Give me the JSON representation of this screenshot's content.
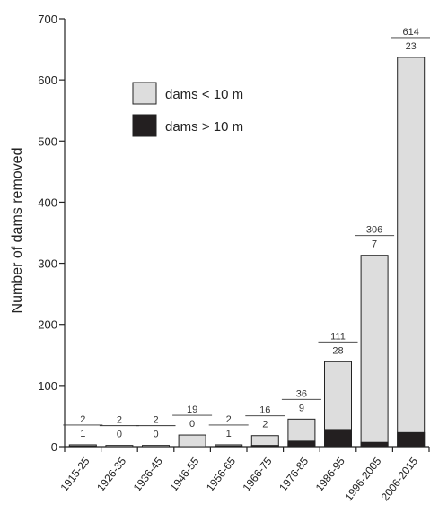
{
  "chart_data": {
    "type": "bar",
    "stacked": true,
    "title": "",
    "xlabel": "",
    "ylabel": "Number of dams removed",
    "ylim": [
      0,
      700
    ],
    "yticks": [
      0,
      100,
      200,
      300,
      400,
      500,
      600,
      700
    ],
    "categories": [
      "1915-25",
      "1926-35",
      "1936-45",
      "1946-55",
      "1956-65",
      "1966-75",
      "1976-85",
      "1986-95",
      "1996-2005",
      "2006-2015"
    ],
    "series": [
      {
        "name": "dams > 10 m",
        "color": "#231f20",
        "values": [
          1,
          0,
          0,
          0,
          1,
          2,
          9,
          28,
          7,
          23
        ]
      },
      {
        "name": "dams < 10 m",
        "color": "#dddddd",
        "values": [
          2,
          2,
          2,
          19,
          2,
          16,
          36,
          111,
          306,
          614
        ]
      }
    ],
    "legend": {
      "position": "top-left",
      "entries": [
        "dams < 10 m",
        "dams > 10 m"
      ]
    },
    "grid": false
  }
}
